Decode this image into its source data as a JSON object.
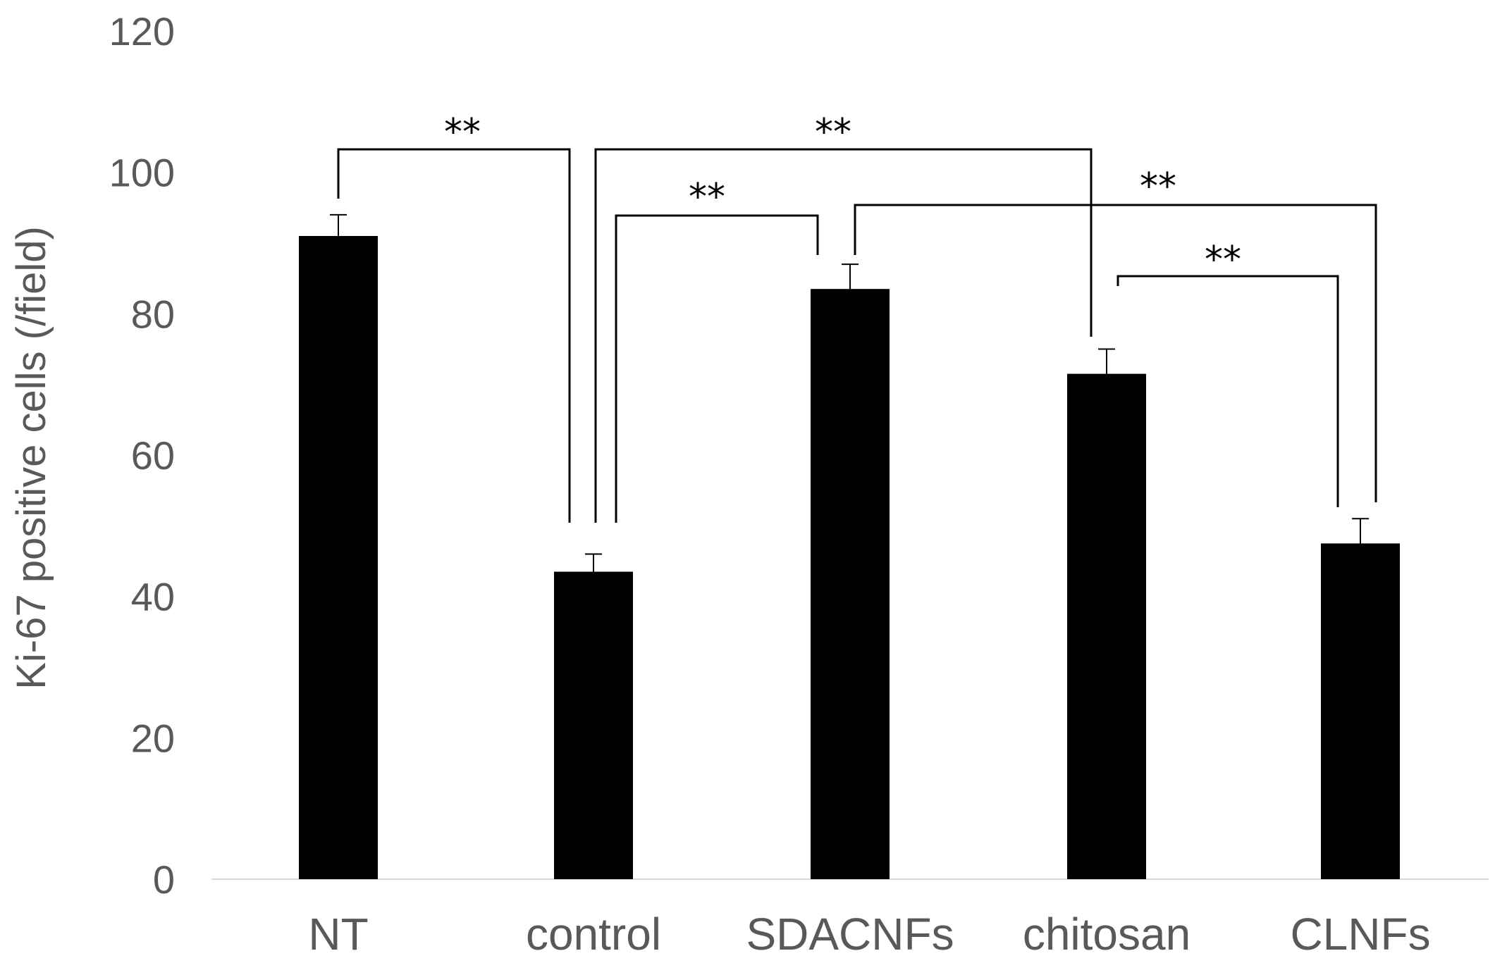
{
  "chart_data": {
    "type": "bar",
    "categories": [
      "NT",
      "control",
      "SDACNFs",
      "chitosan",
      "CLNFs"
    ],
    "values": [
      91,
      43.5,
      83.5,
      71.5,
      47.5
    ],
    "error": [
      3,
      2.5,
      3.5,
      3.5,
      3.5
    ],
    "title": "",
    "xlabel": "",
    "ylabel": "Ki-67 positive cells (/field)",
    "ylim": [
      0,
      120
    ],
    "yticks": [
      0,
      20,
      40,
      60,
      80,
      100,
      120
    ],
    "grid": false,
    "legend": "none",
    "bar_color": "#000000",
    "axis_color": "#d9d9d9",
    "text_color": "#595959",
    "significance": [
      {
        "from": "NT",
        "to": "control",
        "label": "**"
      },
      {
        "from": "control",
        "to": "chitosan",
        "label": "**"
      },
      {
        "from": "control",
        "to": "SDACNFs",
        "label": "**"
      },
      {
        "from": "SDACNFs",
        "to": "CLNFs",
        "label": "**"
      },
      {
        "from": "chitosan",
        "to": "CLNFs",
        "label": "**"
      }
    ]
  }
}
